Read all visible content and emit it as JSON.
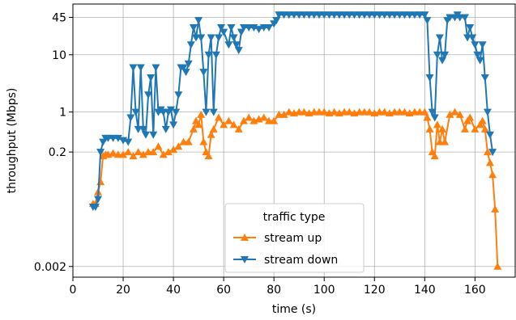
{
  "chart_data": {
    "type": "line",
    "xlabel": "time (s)",
    "ylabel": "throughput (Mbps)",
    "xlim": [
      0,
      176
    ],
    "xticks": [
      0,
      20,
      40,
      60,
      80,
      100,
      120,
      140,
      160
    ],
    "ylim": [
      0.0013,
      77
    ],
    "yticks": [
      0.002,
      0.2,
      1,
      10,
      45
    ],
    "log_y": true,
    "grid": true,
    "legend_title": "traffic type",
    "legend": "lower center",
    "series": [
      {
        "name": "stream up",
        "color": "#ff7f0e",
        "marker": "triangle-up",
        "x": [
          8,
          9,
          10,
          11,
          12,
          13,
          14,
          16,
          18,
          20,
          22,
          24,
          26,
          28,
          30,
          32,
          34,
          36,
          38,
          40,
          42,
          44,
          46,
          48,
          49,
          50,
          51,
          52,
          53,
          54,
          55,
          56,
          58,
          60,
          62,
          64,
          66,
          68,
          70,
          72,
          74,
          76,
          78,
          80,
          82,
          84,
          86,
          88,
          90,
          92,
          94,
          96,
          98,
          100,
          102,
          104,
          106,
          108,
          110,
          112,
          114,
          116,
          118,
          120,
          122,
          124,
          126,
          128,
          130,
          132,
          134,
          136,
          138,
          140,
          141,
          142,
          143,
          144,
          145,
          146,
          147,
          148,
          150,
          152,
          154,
          156,
          157,
          158,
          160,
          162,
          163,
          164,
          165,
          166,
          167,
          168,
          169
        ],
        "values": [
          0.025,
          0.025,
          0.04,
          0.06,
          0.17,
          0.18,
          0.18,
          0.19,
          0.18,
          0.18,
          0.2,
          0.17,
          0.2,
          0.18,
          0.2,
          0.2,
          0.25,
          0.18,
          0.2,
          0.22,
          0.25,
          0.3,
          0.3,
          0.5,
          0.7,
          0.6,
          0.9,
          0.3,
          0.2,
          0.17,
          0.4,
          0.5,
          0.8,
          0.6,
          0.7,
          0.6,
          0.5,
          0.7,
          0.8,
          0.7,
          0.75,
          0.8,
          0.7,
          0.7,
          0.9,
          0.9,
          1,
          0.95,
          1,
          1,
          0.95,
          1,
          1,
          1,
          0.95,
          1,
          0.95,
          1,
          1,
          0.95,
          1,
          1,
          1,
          0.95,
          1,
          1,
          0.95,
          1,
          1,
          1,
          0.95,
          1,
          1,
          1,
          0.8,
          0.5,
          0.2,
          0.17,
          0.6,
          0.3,
          0.5,
          0.3,
          0.9,
          1,
          0.9,
          0.5,
          0.7,
          0.8,
          0.5,
          0.6,
          0.7,
          0.5,
          0.2,
          0.13,
          0.08,
          0.02,
          0.002
        ]
      },
      {
        "name": "stream down",
        "color": "#1f77b4",
        "marker": "triangle-down",
        "x": [
          8,
          9,
          10,
          11,
          12,
          13,
          14,
          16,
          18,
          20,
          22,
          23,
          24,
          25,
          26,
          27,
          28,
          29,
          30,
          31,
          32,
          33,
          34,
          35,
          36,
          37,
          38,
          39,
          40,
          41,
          42,
          43,
          44,
          45,
          46,
          47,
          48,
          49,
          50,
          51,
          52,
          53,
          54,
          55,
          56,
          57,
          58,
          59,
          60,
          62,
          63,
          64,
          65,
          66,
          67,
          68,
          70,
          72,
          74,
          76,
          78,
          80,
          81,
          82,
          84,
          86,
          88,
          90,
          92,
          94,
          96,
          98,
          100,
          102,
          104,
          106,
          108,
          110,
          112,
          114,
          116,
          118,
          120,
          122,
          124,
          126,
          128,
          130,
          132,
          134,
          136,
          138,
          140,
          141,
          142,
          143,
          144,
          145,
          146,
          147,
          148,
          149,
          150,
          152,
          153,
          154,
          156,
          157,
          158,
          159,
          160,
          161,
          162,
          163,
          164,
          165,
          166,
          167
        ],
        "values": [
          0.022,
          0.022,
          0.03,
          0.2,
          0.3,
          0.35,
          0.35,
          0.35,
          0.35,
          0.32,
          0.3,
          0.8,
          6,
          1,
          0.5,
          6,
          0.5,
          0.4,
          2,
          4,
          0.4,
          6,
          1,
          1.1,
          1,
          0.5,
          1,
          1.1,
          0.6,
          1,
          2,
          6,
          6,
          5,
          7,
          15,
          30,
          20,
          40,
          20,
          5,
          1,
          10,
          20,
          1,
          10,
          20,
          30,
          25,
          15,
          30,
          20,
          15,
          12,
          25,
          30,
          30,
          30,
          28,
          30,
          30,
          35,
          40,
          50,
          50,
          50,
          50,
          50,
          50,
          50,
          50,
          50,
          50,
          50,
          50,
          50,
          50,
          50,
          50,
          50,
          50,
          50,
          50,
          50,
          50,
          50,
          50,
          50,
          50,
          50,
          50,
          50,
          50,
          40,
          4,
          1,
          0.8,
          10,
          20,
          8,
          10,
          40,
          45,
          45,
          50,
          45,
          45,
          20,
          30,
          20,
          15,
          10,
          8,
          15,
          4,
          1,
          0.4,
          0.2
        ]
      }
    ]
  }
}
